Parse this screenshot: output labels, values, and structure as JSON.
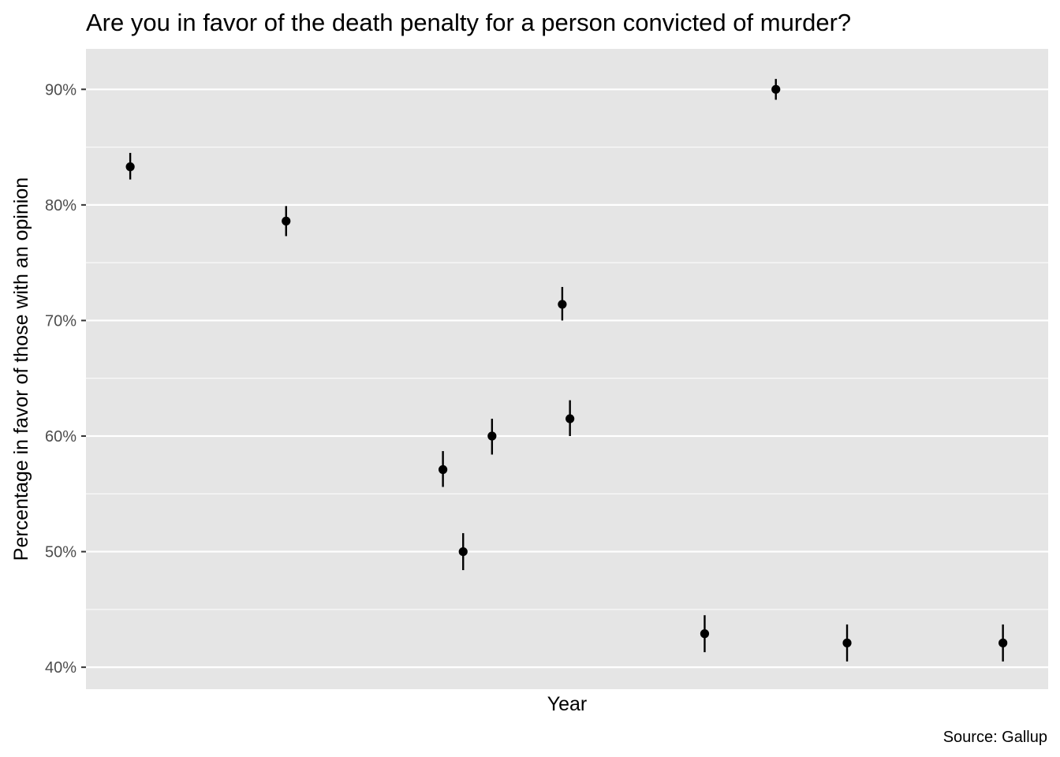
{
  "chart_data": {
    "type": "scatter",
    "title": "Are you in favor of the death penalty for a person convicted of murder?",
    "xlabel": "Year",
    "ylabel": "Percentage in favor of those with an opinion",
    "caption": "Source: Gallup",
    "y_ticks": [
      "40%",
      "50%",
      "60%",
      "70%",
      "80%",
      "90%"
    ],
    "y_tick_values": [
      40,
      50,
      60,
      70,
      80,
      90
    ],
    "ylim": [
      38.1,
      93.5
    ],
    "xlim": [
      0,
      1
    ],
    "x_tick_labels": [],
    "grid": true,
    "panel_background": "#e5e5e5",
    "grid_color": "#ffffff",
    "point_color": "#000000",
    "error_bars": true,
    "series": [
      {
        "points": [
          {
            "x": 0.046,
            "y": 83.3,
            "lower": 82.2,
            "upper": 84.5
          },
          {
            "x": 0.208,
            "y": 78.6,
            "lower": 77.3,
            "upper": 79.9
          },
          {
            "x": 0.371,
            "y": 57.1,
            "lower": 55.6,
            "upper": 58.7
          },
          {
            "x": 0.392,
            "y": 50.0,
            "lower": 48.4,
            "upper": 51.6
          },
          {
            "x": 0.422,
            "y": 60.0,
            "lower": 58.4,
            "upper": 61.5
          },
          {
            "x": 0.495,
            "y": 71.4,
            "lower": 70.0,
            "upper": 72.9
          },
          {
            "x": 0.503,
            "y": 61.5,
            "lower": 60.0,
            "upper": 63.1
          },
          {
            "x": 0.643,
            "y": 42.9,
            "lower": 41.3,
            "upper": 44.5
          },
          {
            "x": 0.717,
            "y": 90.0,
            "lower": 89.1,
            "upper": 90.9
          },
          {
            "x": 0.791,
            "y": 42.1,
            "lower": 40.5,
            "upper": 43.7
          },
          {
            "x": 0.953,
            "y": 42.1,
            "lower": 40.5,
            "upper": 43.7
          }
        ]
      }
    ]
  }
}
